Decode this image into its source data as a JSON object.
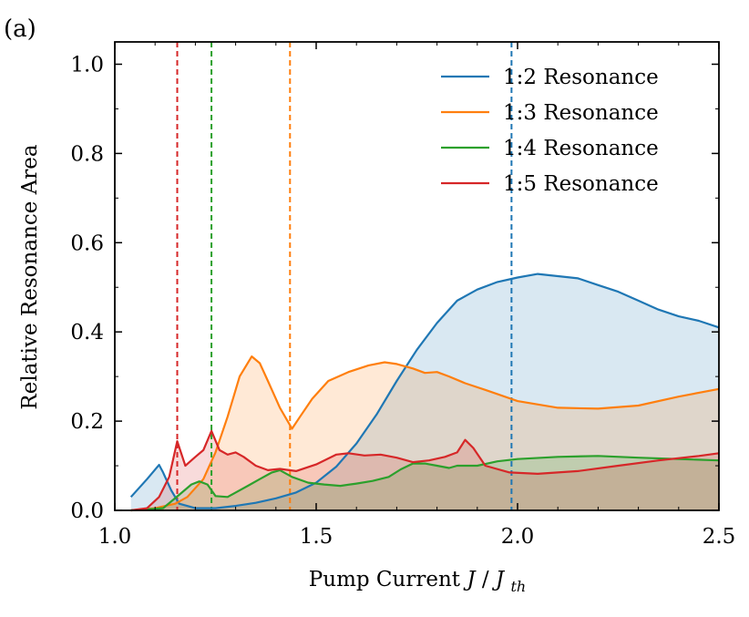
{
  "chart_data": {
    "type": "area",
    "panel_label": "(a)",
    "xlabel": "Pump Current",
    "xlabel_math": {
      "J": "J",
      "slash": " / ",
      "J2": "J",
      "sub": "th"
    },
    "ylabel": "Relative Resonance Area",
    "xlim": [
      1.0,
      2.5
    ],
    "ylim": [
      0.0,
      1.05
    ],
    "xticks": [
      1.0,
      1.5,
      2.0,
      2.5
    ],
    "xtick_labels": [
      "1.0",
      "1.5",
      "2.0",
      "2.5"
    ],
    "yticks": [
      0.0,
      0.2,
      0.4,
      0.6,
      0.8,
      1.0
    ],
    "ytick_labels": [
      "0.0",
      "0.2",
      "0.4",
      "0.6",
      "0.8",
      "1.0"
    ],
    "legend_position": "top-right",
    "series": [
      {
        "name": "1:2 Resonance",
        "color": "#1f77b4",
        "threshold": 1.985,
        "x": [
          1.04,
          1.08,
          1.11,
          1.12,
          1.14,
          1.16,
          1.2,
          1.25,
          1.3,
          1.35,
          1.4,
          1.45,
          1.5,
          1.55,
          1.6,
          1.65,
          1.7,
          1.75,
          1.8,
          1.85,
          1.9,
          1.95,
          2.0,
          2.05,
          2.1,
          2.15,
          2.2,
          2.25,
          2.3,
          2.35,
          2.4,
          2.45,
          2.5
        ],
        "y": [
          0.03,
          0.07,
          0.102,
          0.085,
          0.045,
          0.015,
          0.005,
          0.005,
          0.01,
          0.017,
          0.027,
          0.04,
          0.062,
          0.098,
          0.15,
          0.215,
          0.29,
          0.36,
          0.42,
          0.47,
          0.495,
          0.512,
          0.522,
          0.53,
          0.525,
          0.52,
          0.505,
          0.49,
          0.47,
          0.45,
          0.435,
          0.425,
          0.41
        ]
      },
      {
        "name": "1:3 Resonance",
        "color": "#ff7f0e",
        "threshold": 1.435,
        "x": [
          1.04,
          1.1,
          1.15,
          1.18,
          1.22,
          1.25,
          1.28,
          1.31,
          1.34,
          1.36,
          1.38,
          1.41,
          1.44,
          1.46,
          1.49,
          1.53,
          1.58,
          1.63,
          1.67,
          1.7,
          1.74,
          1.77,
          1.8,
          1.83,
          1.87,
          1.92,
          2.0,
          2.1,
          2.2,
          2.3,
          2.4,
          2.5
        ],
        "y": [
          0.0,
          0.005,
          0.015,
          0.03,
          0.07,
          0.13,
          0.21,
          0.3,
          0.345,
          0.33,
          0.29,
          0.23,
          0.183,
          0.21,
          0.25,
          0.29,
          0.31,
          0.325,
          0.332,
          0.328,
          0.318,
          0.308,
          0.31,
          0.3,
          0.285,
          0.27,
          0.245,
          0.23,
          0.228,
          0.235,
          0.255,
          0.272
        ]
      },
      {
        "name": "1:4 Resonance",
        "color": "#2ca02c",
        "threshold": 1.24,
        "x": [
          1.04,
          1.12,
          1.16,
          1.19,
          1.21,
          1.23,
          1.25,
          1.28,
          1.3,
          1.33,
          1.36,
          1.39,
          1.41,
          1.44,
          1.48,
          1.52,
          1.56,
          1.6,
          1.64,
          1.68,
          1.71,
          1.74,
          1.77,
          1.8,
          1.83,
          1.85,
          1.87,
          1.9,
          1.95,
          2.0,
          2.1,
          2.2,
          2.3,
          2.4,
          2.5
        ],
        "y": [
          0.0,
          0.005,
          0.035,
          0.058,
          0.065,
          0.058,
          0.032,
          0.03,
          0.04,
          0.055,
          0.07,
          0.085,
          0.09,
          0.075,
          0.062,
          0.058,
          0.055,
          0.06,
          0.066,
          0.075,
          0.092,
          0.105,
          0.105,
          0.1,
          0.095,
          0.1,
          0.1,
          0.1,
          0.11,
          0.115,
          0.12,
          0.122,
          0.118,
          0.115,
          0.112
        ]
      },
      {
        "name": "1:5 Resonance",
        "color": "#d62728",
        "threshold": 1.155,
        "x": [
          1.04,
          1.08,
          1.11,
          1.135,
          1.155,
          1.175,
          1.2,
          1.22,
          1.24,
          1.26,
          1.28,
          1.3,
          1.32,
          1.35,
          1.38,
          1.41,
          1.45,
          1.5,
          1.55,
          1.58,
          1.62,
          1.66,
          1.7,
          1.74,
          1.78,
          1.82,
          1.85,
          1.87,
          1.89,
          1.92,
          1.98,
          2.05,
          2.15,
          2.25,
          2.35,
          2.45,
          2.5
        ],
        "y": [
          0.0,
          0.005,
          0.03,
          0.075,
          0.155,
          0.1,
          0.12,
          0.135,
          0.178,
          0.135,
          0.125,
          0.13,
          0.12,
          0.1,
          0.09,
          0.093,
          0.088,
          0.103,
          0.125,
          0.128,
          0.123,
          0.125,
          0.118,
          0.108,
          0.112,
          0.12,
          0.13,
          0.158,
          0.14,
          0.1,
          0.085,
          0.082,
          0.088,
          0.1,
          0.112,
          0.122,
          0.128
        ]
      }
    ]
  }
}
